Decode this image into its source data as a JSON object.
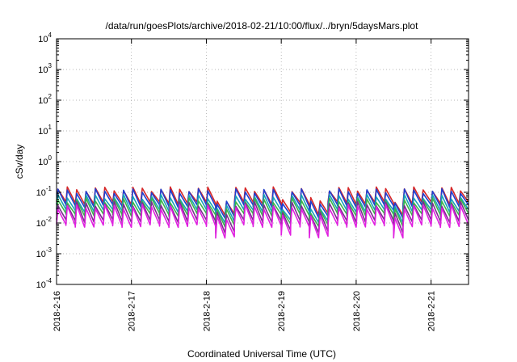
{
  "chart_data": {
    "type": "line",
    "title": "/data/run/goesPlots/archive/2018-02-21/10:00/flux/../bryn/5daysMars.plot",
    "xlabel": "Coordinated Universal Time (UTC)",
    "ylabel": "cSv/day",
    "yscale": "log",
    "ylim": [
      0.0001,
      10000
    ],
    "y_ticks": [
      {
        "base": "10",
        "exp": "-4",
        "value": 0.0001
      },
      {
        "base": "10",
        "exp": "-3",
        "value": 0.001
      },
      {
        "base": "10",
        "exp": "-2",
        "value": 0.01
      },
      {
        "base": "10",
        "exp": "-1",
        "value": 0.1
      },
      {
        "base": "10",
        "exp": "0",
        "value": 1
      },
      {
        "base": "10",
        "exp": "1",
        "value": 10
      },
      {
        "base": "10",
        "exp": "2",
        "value": 100
      },
      {
        "base": "10",
        "exp": "3",
        "value": 1000
      },
      {
        "base": "10",
        "exp": "4",
        "value": 10000
      }
    ],
    "xlim": [
      "2018-02-16 00:00",
      "2018-02-21 12:00"
    ],
    "x_ticks": [
      "2018-2-16",
      "2018-2-17",
      "2018-2-18",
      "2018-2-19",
      "2018-2-20",
      "2018-2-21"
    ],
    "grid": true,
    "pattern": {
      "cycles_per_day": 8,
      "dip_at_days": [
        2.2,
        3.0,
        3.45,
        4.5
      ],
      "dip_factor": 0.45
    },
    "series": [
      {
        "color": "#d62728",
        "peak": 0.15,
        "trough": 0.05
      },
      {
        "color": "#1f3fd0",
        "peak": 0.13,
        "trough": 0.04
      },
      {
        "color": "#17a2b8",
        "peak": 0.085,
        "trough": 0.028
      },
      {
        "color": "#3cb44b",
        "peak": 0.065,
        "trough": 0.021
      },
      {
        "color": "#7b2d8e",
        "peak": 0.05,
        "trough": 0.013
      },
      {
        "color": "#e020e0",
        "peak": 0.04,
        "trough": 0.009
      }
    ]
  }
}
